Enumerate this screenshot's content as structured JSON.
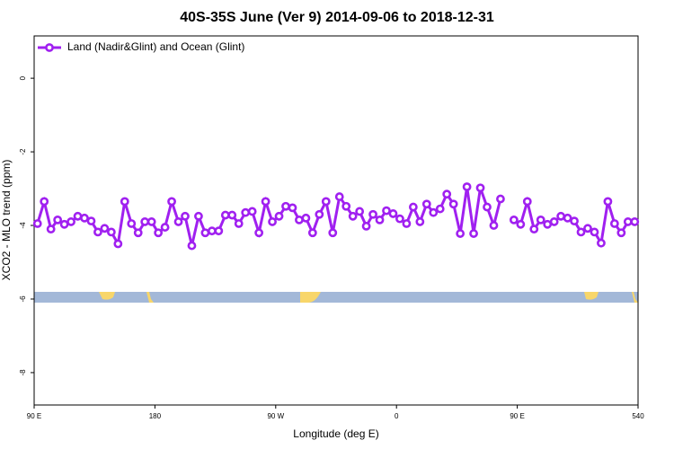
{
  "chart_data": {
    "type": "line",
    "title": "40S-35S June (Ver 9)   2014-09-06 to 2018-12-31",
    "xlabel": "Longitude (deg E)",
    "ylabel": "XCO2 - MLO trend (ppm)",
    "legend": "top-left",
    "x": [
      92.5,
      97.5,
      102.5,
      107.5,
      112.5,
      117.5,
      122.5,
      127.5,
      132.5,
      137.5,
      142.5,
      147.5,
      152.5,
      157.5,
      162.5,
      167.5,
      172.5,
      177.5,
      182.5,
      187.5,
      192.5,
      197.5,
      202.5,
      207.5,
      212.5,
      217.5,
      222.5,
      227.5,
      232.5,
      237.5,
      242.5,
      247.5,
      252.5,
      257.5,
      262.5,
      267.5,
      272.5,
      277.5,
      282.5,
      287.5,
      292.5,
      297.5,
      302.5,
      307.5,
      312.5,
      317.5,
      322.5,
      327.5,
      332.5,
      337.5,
      342.5,
      347.5,
      352.5,
      357.5,
      362.5,
      367.5,
      372.5,
      377.5,
      382.5,
      387.5,
      392.5,
      397.5,
      402.5,
      407.5,
      412.5,
      417.5,
      422.5,
      427.5,
      432.5,
      437.5,
      442.5,
      447.5,
      452.5,
      457.5,
      462.5,
      467.5,
      472.5,
      477.5,
      482.5,
      487.5,
      492.5,
      497.5,
      502.5,
      507.5,
      512.5,
      517.5,
      522.5,
      527.5,
      532.5,
      537.5
    ],
    "series": [
      {
        "name": "Land (Nadir&Glint) and Ocean (Glint)",
        "color": "#a020f0",
        "values": [
          -3.95,
          -3.35,
          -4.1,
          -3.85,
          -3.97,
          -3.9,
          -3.75,
          -3.8,
          -3.88,
          -4.18,
          -4.08,
          -4.18,
          -4.5,
          -3.35,
          -3.95,
          -4.2,
          -3.9,
          -3.9,
          -4.2,
          -4.05,
          -3.35,
          -3.9,
          -3.75,
          -4.55,
          -3.75,
          -4.2,
          -4.15,
          -4.15,
          -3.72,
          -3.72,
          -3.95,
          -3.65,
          -3.62,
          -4.2,
          -3.35,
          -3.9,
          -3.75,
          -3.48,
          -3.52,
          -3.85,
          -3.8,
          -4.2,
          -3.7,
          -3.35,
          -4.2,
          -3.22,
          -3.48,
          -3.75,
          -3.62,
          -4.02,
          -3.7,
          -3.85,
          -3.6,
          -3.68,
          -3.82,
          -3.95,
          -3.5,
          -3.9,
          -3.42,
          -3.65,
          -3.55,
          -3.15,
          -3.42,
          -4.22,
          -2.95,
          -4.22,
          -2.98,
          -3.5,
          -4.0,
          -3.28,
          null,
          -3.85,
          -3.97,
          -3.35,
          -4.1,
          -3.85,
          -3.97,
          -3.9,
          -3.75,
          -3.8,
          -3.88,
          -4.18,
          -4.08,
          -4.18,
          -4.48,
          -3.35,
          -3.95,
          -4.2,
          -3.9,
          -3.9
        ]
      }
    ],
    "xlim": [
      90,
      540
    ],
    "xticks": [
      {
        "value": 90,
        "label": "90 E"
      },
      180,
      {
        "value": 270,
        "label": "90 W"
      },
      {
        "value": 360,
        "label": "0"
      },
      {
        "value": 450,
        "label": "90 E"
      },
      540
    ],
    "ylim": [
      -8.88,
      1.15
    ],
    "yticks": [
      0,
      -2,
      -4,
      -6,
      -8
    ]
  }
}
